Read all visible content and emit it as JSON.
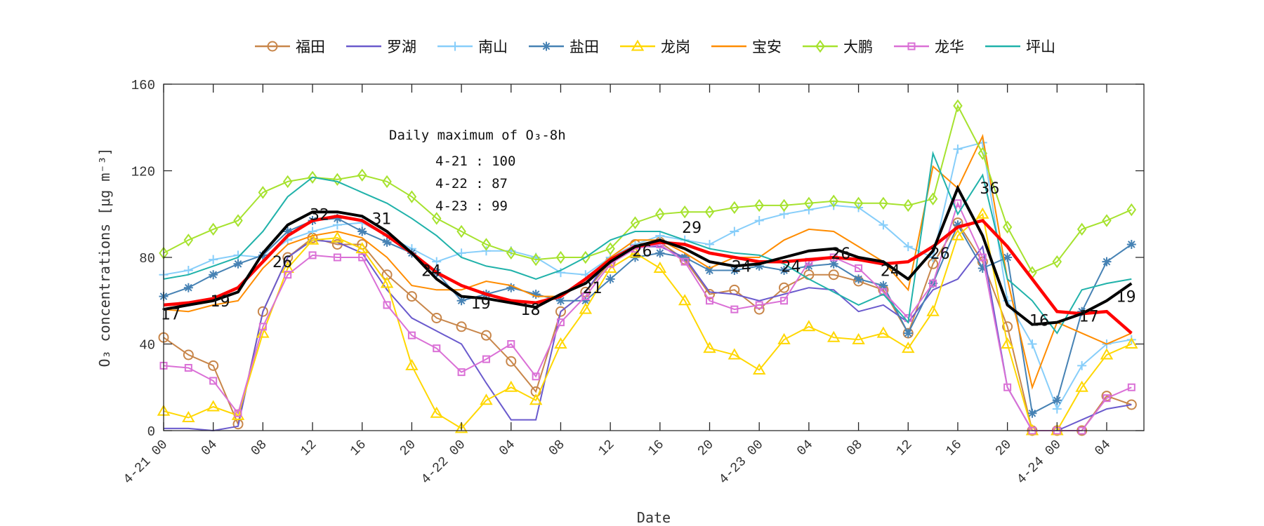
{
  "chart_data": {
    "type": "line",
    "xlabel": "Date",
    "ylabel": "O₃ concentrations [μg m⁻³]",
    "xlim_hours_from_4-21_00": [
      0,
      79
    ],
    "ylim": [
      0,
      160
    ],
    "yticks": [
      0,
      40,
      80,
      120,
      160
    ],
    "xticks": [
      {
        "h": 0,
        "label": "4-21 00"
      },
      {
        "h": 4,
        "label": "04"
      },
      {
        "h": 8,
        "label": "08"
      },
      {
        "h": 12,
        "label": "12"
      },
      {
        "h": 16,
        "label": "16"
      },
      {
        "h": 20,
        "label": "20"
      },
      {
        "h": 24,
        "label": "4-22 00"
      },
      {
        "h": 28,
        "label": "04"
      },
      {
        "h": 32,
        "label": "08"
      },
      {
        "h": 36,
        "label": "12"
      },
      {
        "h": 40,
        "label": "16"
      },
      {
        "h": 44,
        "label": "20"
      },
      {
        "h": 48,
        "label": "4-23 00"
      },
      {
        "h": 52,
        "label": "04"
      },
      {
        "h": 56,
        "label": "08"
      },
      {
        "h": 60,
        "label": "12"
      },
      {
        "h": 64,
        "label": "16"
      },
      {
        "h": 68,
        "label": "20"
      },
      {
        "h": 72,
        "label": "4-24 00"
      },
      {
        "h": 76,
        "label": "04"
      }
    ],
    "grid": false,
    "legend_position": "top",
    "x_hours": [
      0,
      2,
      4,
      6,
      8,
      10,
      12,
      14,
      16,
      18,
      20,
      22,
      24,
      26,
      28,
      30,
      32,
      34,
      36,
      38,
      40,
      42,
      44,
      46,
      48,
      50,
      52,
      54,
      56,
      58,
      60,
      62,
      64,
      66,
      68,
      70,
      72,
      74,
      76,
      78
    ],
    "series": [
      {
        "name": "福田",
        "color": "#c8864a",
        "marker": "circle",
        "values": [
          43,
          35,
          30,
          3,
          55,
          80,
          89,
          86,
          86,
          72,
          62,
          52,
          48,
          44,
          32,
          18,
          55,
          64,
          78,
          86,
          87,
          79,
          63,
          65,
          56,
          66,
          72,
          72,
          69,
          65,
          45,
          77,
          96,
          78,
          48,
          0,
          0,
          0,
          16,
          12
        ]
      },
      {
        "name": "罗湖",
        "color": "#6a5acd",
        "marker": "none",
        "values": [
          1,
          1,
          0,
          2,
          55,
          80,
          88,
          87,
          82,
          65,
          52,
          46,
          40,
          22,
          5,
          5,
          55,
          64,
          80,
          85,
          85,
          80,
          64,
          63,
          60,
          63,
          66,
          65,
          55,
          58,
          50,
          65,
          70,
          85,
          20,
          0,
          0,
          5,
          10,
          12
        ]
      },
      {
        "name": "南山",
        "color": "#87cefa",
        "marker": "plus",
        "values": [
          72,
          74,
          79,
          81,
          80,
          88,
          92,
          95,
          96,
          90,
          84,
          78,
          82,
          83,
          83,
          80,
          73,
          72,
          80,
          86,
          90,
          88,
          86,
          92,
          97,
          100,
          102,
          104,
          103,
          95,
          85,
          80,
          130,
          133,
          60,
          40,
          10,
          30,
          40,
          42
        ]
      },
      {
        "name": "盐田",
        "color": "#4682b4",
        "marker": "asterisk",
        "values": [
          62,
          66,
          72,
          77,
          81,
          92,
          97,
          98,
          92,
          87,
          82,
          73,
          60,
          63,
          66,
          63,
          60,
          60,
          70,
          80,
          82,
          80,
          74,
          74,
          76,
          74,
          76,
          77,
          70,
          67,
          45,
          68,
          95,
          75,
          80,
          8,
          14,
          55,
          78,
          86
        ]
      },
      {
        "name": "龙岗",
        "color": "#ffd700",
        "marker": "triangle",
        "values": [
          9,
          6,
          11,
          7,
          45,
          75,
          88,
          89,
          84,
          68,
          30,
          8,
          1,
          14,
          20,
          14,
          40,
          56,
          75,
          82,
          75,
          60,
          38,
          35,
          28,
          42,
          48,
          43,
          42,
          45,
          38,
          55,
          90,
          100,
          40,
          0,
          0,
          20,
          35,
          40
        ]
      },
      {
        "name": "宝安",
        "color": "#ff8c00",
        "marker": "none",
        "values": [
          56,
          55,
          58,
          60,
          75,
          86,
          90,
          92,
          89,
          80,
          67,
          65,
          65,
          69,
          67,
          62,
          62,
          70,
          80,
          88,
          88,
          82,
          75,
          80,
          80,
          88,
          93,
          92,
          85,
          78,
          65,
          122,
          112,
          136,
          70,
          20,
          50,
          45,
          40,
          45
        ]
      },
      {
        "name": "大鹏",
        "color": "#a6e22e",
        "marker": "diamond",
        "values": [
          82,
          88,
          93,
          97,
          110,
          115,
          117,
          116,
          118,
          115,
          108,
          98,
          92,
          86,
          82,
          79,
          80,
          80,
          84,
          96,
          100,
          101,
          101,
          103,
          104,
          104,
          105,
          106,
          105,
          105,
          104,
          107,
          150,
          128,
          94,
          73,
          78,
          93,
          97,
          102
        ]
      },
      {
        "name": "龙华",
        "color": "#da70d6",
        "marker": "square",
        "values": [
          30,
          29,
          23,
          8,
          48,
          72,
          81,
          80,
          80,
          58,
          44,
          38,
          27,
          33,
          40,
          25,
          50,
          62,
          77,
          84,
          86,
          78,
          60,
          56,
          58,
          60,
          78,
          80,
          75,
          64,
          52,
          68,
          105,
          80,
          20,
          0,
          0,
          0,
          15,
          20
        ]
      },
      {
        "name": "坪山",
        "color": "#20b2aa",
        "marker": "none",
        "values": [
          70,
          72,
          76,
          80,
          92,
          108,
          117,
          115,
          110,
          105,
          98,
          90,
          80,
          76,
          74,
          70,
          74,
          80,
          88,
          92,
          92,
          88,
          84,
          82,
          81,
          77,
          70,
          64,
          58,
          63,
          50,
          128,
          100,
          118,
          70,
          60,
          45,
          65,
          68,
          70
        ]
      }
    ],
    "mean_line": {
      "color": "#000000",
      "values": [
        56,
        58,
        60,
        64,
        82,
        95,
        101,
        101,
        99,
        92,
        82,
        70,
        62,
        61,
        59,
        57,
        63,
        68,
        78,
        85,
        88,
        84,
        78,
        76,
        77,
        80,
        83,
        84,
        80,
        78,
        70,
        83,
        112,
        90,
        58,
        49,
        50,
        54,
        60,
        68
      ]
    },
    "smooth_line": {
      "color": "#ff0000",
      "values": [
        58,
        59,
        61,
        66,
        78,
        90,
        97,
        99,
        97,
        90,
        82,
        73,
        67,
        63,
        60,
        59,
        62,
        70,
        79,
        85,
        87,
        86,
        82,
        80,
        78,
        78,
        79,
        80,
        79,
        77,
        78,
        85,
        94,
        97,
        85,
        70,
        55,
        54,
        55,
        45
      ]
    },
    "point_labels": [
      {
        "h": 0,
        "v": 54,
        "text": "17"
      },
      {
        "h": 4,
        "v": 60,
        "text": "19"
      },
      {
        "h": 9,
        "v": 78,
        "text": "26"
      },
      {
        "h": 12,
        "v": 100,
        "text": "32"
      },
      {
        "h": 17,
        "v": 98,
        "text": "31"
      },
      {
        "h": 21,
        "v": 74,
        "text": "24"
      },
      {
        "h": 25,
        "v": 59,
        "text": "19"
      },
      {
        "h": 29,
        "v": 56,
        "text": "18"
      },
      {
        "h": 34,
        "v": 66,
        "text": "21"
      },
      {
        "h": 38,
        "v": 83,
        "text": "26"
      },
      {
        "h": 42,
        "v": 94,
        "text": "29"
      },
      {
        "h": 46,
        "v": 76,
        "text": "24"
      },
      {
        "h": 50,
        "v": 76,
        "text": "24"
      },
      {
        "h": 54,
        "v": 82,
        "text": "26"
      },
      {
        "h": 58,
        "v": 74,
        "text": "24"
      },
      {
        "h": 62,
        "v": 82,
        "text": "26"
      },
      {
        "h": 66,
        "v": 112,
        "text": "36"
      },
      {
        "h": 70,
        "v": 51,
        "text": "16"
      },
      {
        "h": 74,
        "v": 53,
        "text": "17"
      },
      {
        "h": 77,
        "v": 62,
        "text": "19"
      }
    ],
    "annotation": {
      "title": "Daily maximum of O₃-8h",
      "lines": [
        "4-21 : 100",
        "4-22 : 87",
        "4-23 : 99"
      ]
    }
  }
}
